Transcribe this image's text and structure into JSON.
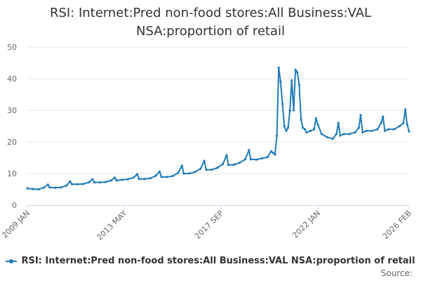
{
  "chart_data": {
    "type": "line",
    "title_line1": "RSI: Internet:Pred non-food stores:All Business:VAL",
    "title_line2": "NSA:proportion of retail",
    "xlabel": "",
    "ylabel": "",
    "ylim": [
      0,
      50
    ],
    "y_ticks": [
      0,
      10,
      20,
      30,
      40,
      50
    ],
    "x_tick_labels": [
      "2009 JAN",
      "2013 MAY",
      "2017 SEP",
      "2022 JAN",
      "2026 FEB"
    ],
    "grid": true,
    "legend_position": "bottom",
    "line_color": "#1f7ab8",
    "series": [
      {
        "name": "RSI: Internet:Pred non-food stores:All Business:VAL NSA:proportion of retail",
        "x": [
          "2009-01",
          "2009-04",
          "2009-07",
          "2009-10",
          "2009-12",
          "2010-01",
          "2010-04",
          "2010-07",
          "2010-10",
          "2010-12",
          "2011-01",
          "2011-04",
          "2011-07",
          "2011-10",
          "2011-12",
          "2012-01",
          "2012-04",
          "2012-07",
          "2012-10",
          "2012-12",
          "2013-01",
          "2013-04",
          "2013-07",
          "2013-10",
          "2013-12",
          "2014-01",
          "2014-04",
          "2014-07",
          "2014-10",
          "2014-12",
          "2015-01",
          "2015-04",
          "2015-07",
          "2015-10",
          "2015-12",
          "2016-01",
          "2016-04",
          "2016-07",
          "2016-10",
          "2016-12",
          "2017-01",
          "2017-04",
          "2017-07",
          "2017-10",
          "2017-12",
          "2018-01",
          "2018-04",
          "2018-07",
          "2018-10",
          "2018-12",
          "2019-01",
          "2019-04",
          "2019-07",
          "2019-10",
          "2019-12",
          "2020-01",
          "2020-02",
          "2020-03",
          "2020-04",
          "2020-05",
          "2020-06",
          "2020-07",
          "2020-08",
          "2020-09",
          "2020-10",
          "2020-11",
          "2020-12",
          "2021-01",
          "2021-02",
          "2021-03",
          "2021-04",
          "2021-05",
          "2021-06",
          "2021-07",
          "2021-09",
          "2021-11",
          "2021-12",
          "2022-01",
          "2022-03",
          "2022-06",
          "2022-09",
          "2022-11",
          "2022-12",
          "2023-01",
          "2023-03",
          "2023-06",
          "2023-09",
          "2023-11",
          "2023-12",
          "2024-01",
          "2024-03",
          "2024-06",
          "2024-09",
          "2024-11",
          "2024-12",
          "2025-01",
          "2025-03",
          "2025-06",
          "2025-09",
          "2025-11",
          "2025-12",
          "2026-01",
          "2026-02"
        ],
        "values": [
          5.3,
          5.1,
          5.0,
          5.6,
          6.5,
          5.6,
          5.5,
          5.6,
          6.2,
          7.5,
          6.6,
          6.6,
          6.7,
          7.2,
          8.2,
          7.2,
          7.2,
          7.3,
          7.8,
          8.7,
          7.8,
          8.0,
          8.2,
          8.7,
          9.8,
          8.3,
          8.3,
          8.5,
          9.3,
          10.6,
          8.9,
          8.9,
          9.2,
          10.2,
          12.5,
          10.0,
          10.0,
          10.5,
          11.5,
          14.0,
          11.2,
          11.2,
          11.8,
          13.0,
          15.8,
          12.7,
          12.8,
          13.4,
          14.5,
          17.4,
          14.5,
          14.4,
          14.8,
          15.2,
          17.0,
          16.5,
          16.0,
          22.0,
          43.5,
          39.0,
          32.0,
          25.0,
          23.5,
          24.5,
          30.0,
          39.5,
          30.0,
          42.8,
          42.0,
          38.0,
          27.0,
          24.5,
          24.0,
          23.0,
          23.5,
          24.0,
          27.5,
          25.5,
          22.5,
          21.5,
          21.0,
          22.5,
          26.0,
          22.0,
          22.5,
          22.5,
          23.0,
          24.5,
          28.5,
          23.0,
          23.5,
          23.5,
          24.0,
          26.0,
          28.0,
          23.5,
          24.0,
          24.0,
          25.0,
          26.0,
          30.3,
          25.5,
          23.3
        ]
      }
    ]
  },
  "footer": {
    "source_label": "Source:"
  }
}
